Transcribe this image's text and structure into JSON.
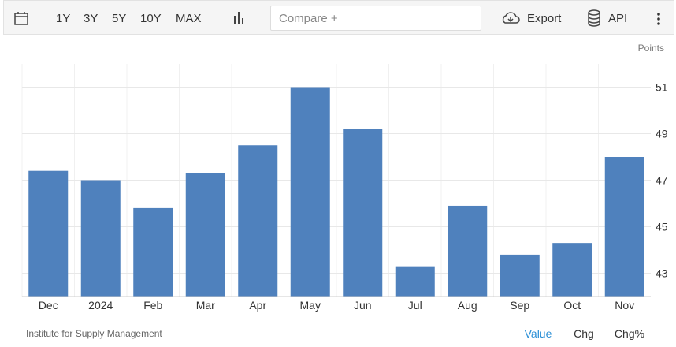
{
  "toolbar": {
    "ranges": [
      "1Y",
      "3Y",
      "5Y",
      "10Y",
      "MAX"
    ],
    "compare": "Compare +",
    "export": "Export",
    "api": "API"
  },
  "chart_data": {
    "type": "bar",
    "y_label": "Points",
    "categories": [
      "Dec",
      "2024",
      "Feb",
      "Mar",
      "Apr",
      "May",
      "Jun",
      "Jul",
      "Aug",
      "Sep",
      "Oct",
      "Nov"
    ],
    "values": [
      47.4,
      47.0,
      45.8,
      47.3,
      48.5,
      51.0,
      49.2,
      43.3,
      45.9,
      43.8,
      44.3,
      48.0
    ],
    "color": "#4f81bd",
    "ylim": [
      42,
      52
    ],
    "yticks": [
      43,
      45,
      47,
      49,
      51
    ],
    "grid": true
  },
  "footer": {
    "source": "Institute for Supply Management",
    "tabs": [
      "Value",
      "Chg",
      "Chg%"
    ]
  }
}
